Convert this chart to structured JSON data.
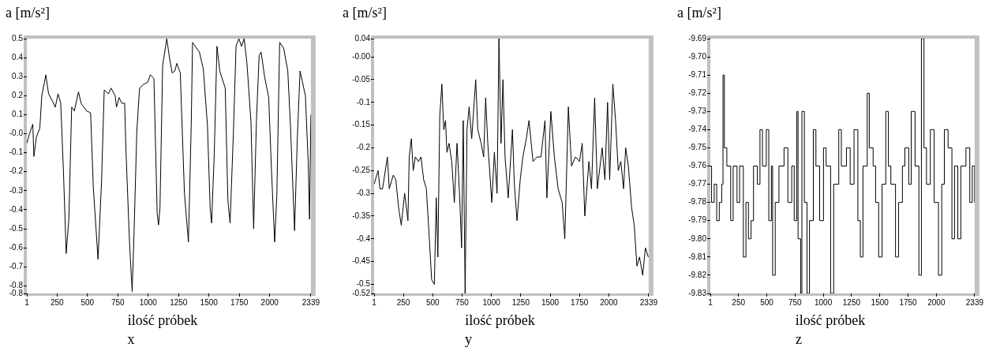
{
  "chart_data": [
    {
      "type": "line",
      "title": "x",
      "xlabel": "ilość próbek",
      "ylabel": "a [m/s²]",
      "color": "#000000",
      "xlim": [
        1,
        2339
      ],
      "xticks": [
        1,
        250,
        500,
        750,
        1000,
        1250,
        1500,
        1750,
        2000,
        2339
      ],
      "ylim": [
        -0.84,
        0.5
      ],
      "yticks": [
        0.5,
        0.4,
        0.3,
        0.2,
        0.1,
        {
          "value": 0,
          "label": "-0.0"
        },
        -0.1,
        -0.2,
        -0.3,
        -0.4,
        -0.5,
        -0.6,
        -0.7,
        -0.8,
        {
          "value": -0.84,
          "label": "-0.8"
        }
      ],
      "x": [
        1,
        23,
        50,
        59,
        79,
        108,
        124,
        146,
        157,
        180,
        213,
        235,
        258,
        280,
        303,
        325,
        347,
        370,
        392,
        426,
        448,
        493,
        526,
        548,
        587,
        616,
        638,
        672,
        694,
        728,
        739,
        761,
        784,
        806,
        817,
        846,
        868,
        884,
        906,
        929,
        962,
        996,
        1018,
        1047,
        1063,
        1074,
        1085,
        1097,
        1119,
        1153,
        1175,
        1197,
        1220,
        1235,
        1264,
        1298,
        1331,
        1354,
        1365,
        1387,
        1421,
        1454,
        1488,
        1510,
        1522,
        1544,
        1566,
        1589,
        1634,
        1656,
        1674,
        1701,
        1723,
        1746,
        1768,
        1790,
        1813,
        1846,
        1868,
        1891,
        1913,
        1929,
        1958,
        1992,
        2014,
        2041,
        2059,
        2082,
        2115,
        2149,
        2171,
        2205,
        2227,
        2250,
        2294,
        2317,
        2328,
        2339
      ],
      "values": [
        -0.05,
        0.0,
        0.05,
        -0.12,
        -0.02,
        0.03,
        0.2,
        0.27,
        0.31,
        0.21,
        0.17,
        0.14,
        0.21,
        0.16,
        -0.21,
        -0.63,
        -0.45,
        0.14,
        0.12,
        0.22,
        0.16,
        0.12,
        0.11,
        -0.28,
        -0.66,
        -0.25,
        0.23,
        0.21,
        0.24,
        0.2,
        0.14,
        0.19,
        0.16,
        0.16,
        -0.09,
        -0.57,
        -0.83,
        -0.51,
        0.01,
        0.24,
        0.26,
        0.27,
        0.31,
        0.29,
        -0.13,
        -0.42,
        -0.48,
        -0.39,
        0.36,
        0.5,
        0.4,
        0.32,
        0.33,
        0.37,
        0.32,
        -0.31,
        -0.57,
        0.04,
        0.48,
        0.46,
        0.43,
        0.34,
        0.04,
        -0.39,
        -0.47,
        -0.1,
        0.46,
        0.33,
        0.24,
        -0.35,
        -0.47,
        0.0,
        0.46,
        0.5,
        0.46,
        0.5,
        0.37,
        0.06,
        -0.5,
        0.07,
        0.41,
        0.43,
        0.3,
        0.19,
        -0.18,
        -0.57,
        -0.32,
        0.48,
        0.45,
        0.33,
        0.04,
        -0.51,
        -0.03,
        0.33,
        0.2,
        -0.15,
        -0.45,
        0.1
      ]
    },
    {
      "type": "line",
      "title": "y",
      "xlabel": "ilość próbek",
      "ylabel": "a [m/s²]",
      "color": "#000000",
      "xlim": [
        1,
        2339
      ],
      "xticks": [
        1,
        250,
        500,
        750,
        1000,
        1250,
        1500,
        1750,
        2000,
        2339
      ],
      "ylim": [
        -0.52,
        0.04
      ],
      "yticks": [
        0.04,
        {
          "value": 0,
          "label": "-0.00"
        },
        -0.05,
        -0.1,
        -0.15,
        -0.2,
        -0.25,
        -0.3,
        -0.35,
        -0.4,
        -0.45,
        -0.5,
        -0.52
      ],
      "x": [
        1,
        35,
        51,
        73,
        114,
        130,
        164,
        186,
        209,
        232,
        261,
        289,
        300,
        318,
        334,
        352,
        379,
        400,
        423,
        446,
        469,
        491,
        514,
        530,
        544,
        560,
        578,
        594,
        609,
        621,
        639,
        662,
        684,
        707,
        730,
        746,
        760,
        776,
        792,
        810,
        832,
        866,
        884,
        912,
        934,
        951,
        969,
        1003,
        1025,
        1048,
        1064,
        1082,
        1098,
        1116,
        1143,
        1179,
        1195,
        1218,
        1245,
        1268,
        1297,
        1320,
        1354,
        1388,
        1422,
        1456,
        1472,
        1506,
        1536,
        1568,
        1602,
        1625,
        1655,
        1682,
        1716,
        1750,
        1773,
        1795,
        1830,
        1852,
        1879,
        1902,
        1943,
        1966,
        1989,
        2007,
        2034,
        2057,
        2080,
        2102,
        2125,
        2143,
        2166,
        2193,
        2216,
        2239,
        2261,
        2288,
        2311,
        2336
      ],
      "values": [
        -0.28,
        -0.25,
        -0.29,
        -0.29,
        -0.22,
        -0.29,
        -0.26,
        -0.27,
        -0.33,
        -0.37,
        -0.3,
        -0.36,
        -0.22,
        -0.18,
        -0.25,
        -0.22,
        -0.23,
        -0.22,
        -0.27,
        -0.29,
        -0.39,
        -0.49,
        -0.5,
        -0.31,
        -0.44,
        -0.13,
        -0.06,
        -0.16,
        -0.14,
        -0.21,
        -0.19,
        -0.23,
        -0.32,
        -0.19,
        -0.31,
        -0.42,
        -0.14,
        -0.52,
        -0.16,
        -0.11,
        -0.18,
        -0.05,
        -0.16,
        -0.19,
        -0.22,
        -0.09,
        -0.19,
        -0.32,
        -0.21,
        -0.3,
        0.04,
        -0.19,
        -0.05,
        -0.22,
        -0.31,
        -0.16,
        -0.28,
        -0.36,
        -0.27,
        -0.22,
        -0.18,
        -0.14,
        -0.23,
        -0.22,
        -0.22,
        -0.14,
        -0.31,
        -0.12,
        -0.22,
        -0.29,
        -0.32,
        -0.4,
        -0.11,
        -0.24,
        -0.22,
        -0.23,
        -0.19,
        -0.35,
        -0.23,
        -0.29,
        -0.09,
        -0.29,
        -0.2,
        -0.27,
        -0.1,
        -0.27,
        -0.06,
        -0.14,
        -0.25,
        -0.23,
        -0.29,
        -0.2,
        -0.24,
        -0.33,
        -0.37,
        -0.46,
        -0.44,
        -0.48,
        -0.42,
        -0.44
      ]
    },
    {
      "type": "step",
      "title": "z",
      "xlabel": "ilość próbek",
      "ylabel": "a [m/s²]",
      "color": "#000000",
      "xlim": [
        1,
        2339
      ],
      "xticks": [
        1,
        250,
        500,
        750,
        1000,
        1250,
        1500,
        1750,
        2000,
        2339
      ],
      "ylim": [
        -9.83,
        -9.69
      ],
      "yticks": [
        -9.69,
        {
          "value": -9.7,
          "label": "-9.70"
        },
        -9.71,
        -9.72,
        -9.73,
        -9.74,
        -9.75,
        -9.76,
        -9.77,
        -9.78,
        -9.79,
        {
          "value": -9.8,
          "label": "-9.80"
        },
        -9.81,
        -9.82,
        -9.83
      ],
      "x": [
        1,
        12,
        35,
        57,
        80,
        102,
        113,
        125,
        147,
        181,
        203,
        237,
        260,
        293,
        316,
        338,
        361,
        383,
        417,
        440,
        462,
        496,
        518,
        541,
        552,
        575,
        608,
        653,
        687,
        721,
        743,
        766,
        777,
        800,
        811,
        833,
        856,
        878,
        912,
        935,
        968,
        1002,
        1025,
        1065,
        1092,
        1137,
        1160,
        1205,
        1238,
        1272,
        1306,
        1328,
        1351,
        1389,
        1407,
        1441,
        1463,
        1490,
        1520,
        1553,
        1576,
        1598,
        1639,
        1666,
        1700,
        1722,
        1756,
        1778,
        1812,
        1846,
        1868,
        1891,
        1913,
        1947,
        1981,
        2019,
        2048,
        2071,
        2104,
        2138,
        2161,
        2190,
        2217,
        2262,
        2296,
        2318,
        2339
      ],
      "values": [
        -9.76,
        -9.78,
        -9.77,
        -9.79,
        -9.78,
        -9.77,
        -9.71,
        -9.75,
        -9.76,
        -9.79,
        -9.76,
        -9.78,
        -9.76,
        -9.81,
        -9.78,
        -9.8,
        -9.79,
        -9.76,
        -9.77,
        -9.74,
        -9.76,
        -9.74,
        -9.79,
        -9.76,
        -9.82,
        -9.78,
        -9.76,
        -9.75,
        -9.78,
        -9.76,
        -9.79,
        -9.73,
        -9.8,
        -9.83,
        -9.73,
        -9.78,
        -9.83,
        -9.79,
        -9.74,
        -9.76,
        -9.79,
        -9.75,
        -9.76,
        -9.83,
        -9.77,
        -9.74,
        -9.76,
        -9.75,
        -9.77,
        -9.74,
        -9.79,
        -9.81,
        -9.76,
        -9.72,
        -9.75,
        -9.76,
        -9.78,
        -9.81,
        -9.77,
        -9.73,
        -9.76,
        -9.77,
        -9.81,
        -9.78,
        -9.76,
        -9.75,
        -9.77,
        -9.73,
        -9.76,
        -9.82,
        -9.69,
        -9.75,
        -9.77,
        -9.74,
        -9.78,
        -9.82,
        -9.77,
        -9.74,
        -9.75,
        -9.8,
        -9.76,
        -9.8,
        -9.76,
        -9.75,
        -9.78,
        -9.76,
        -9.78
      ]
    }
  ]
}
